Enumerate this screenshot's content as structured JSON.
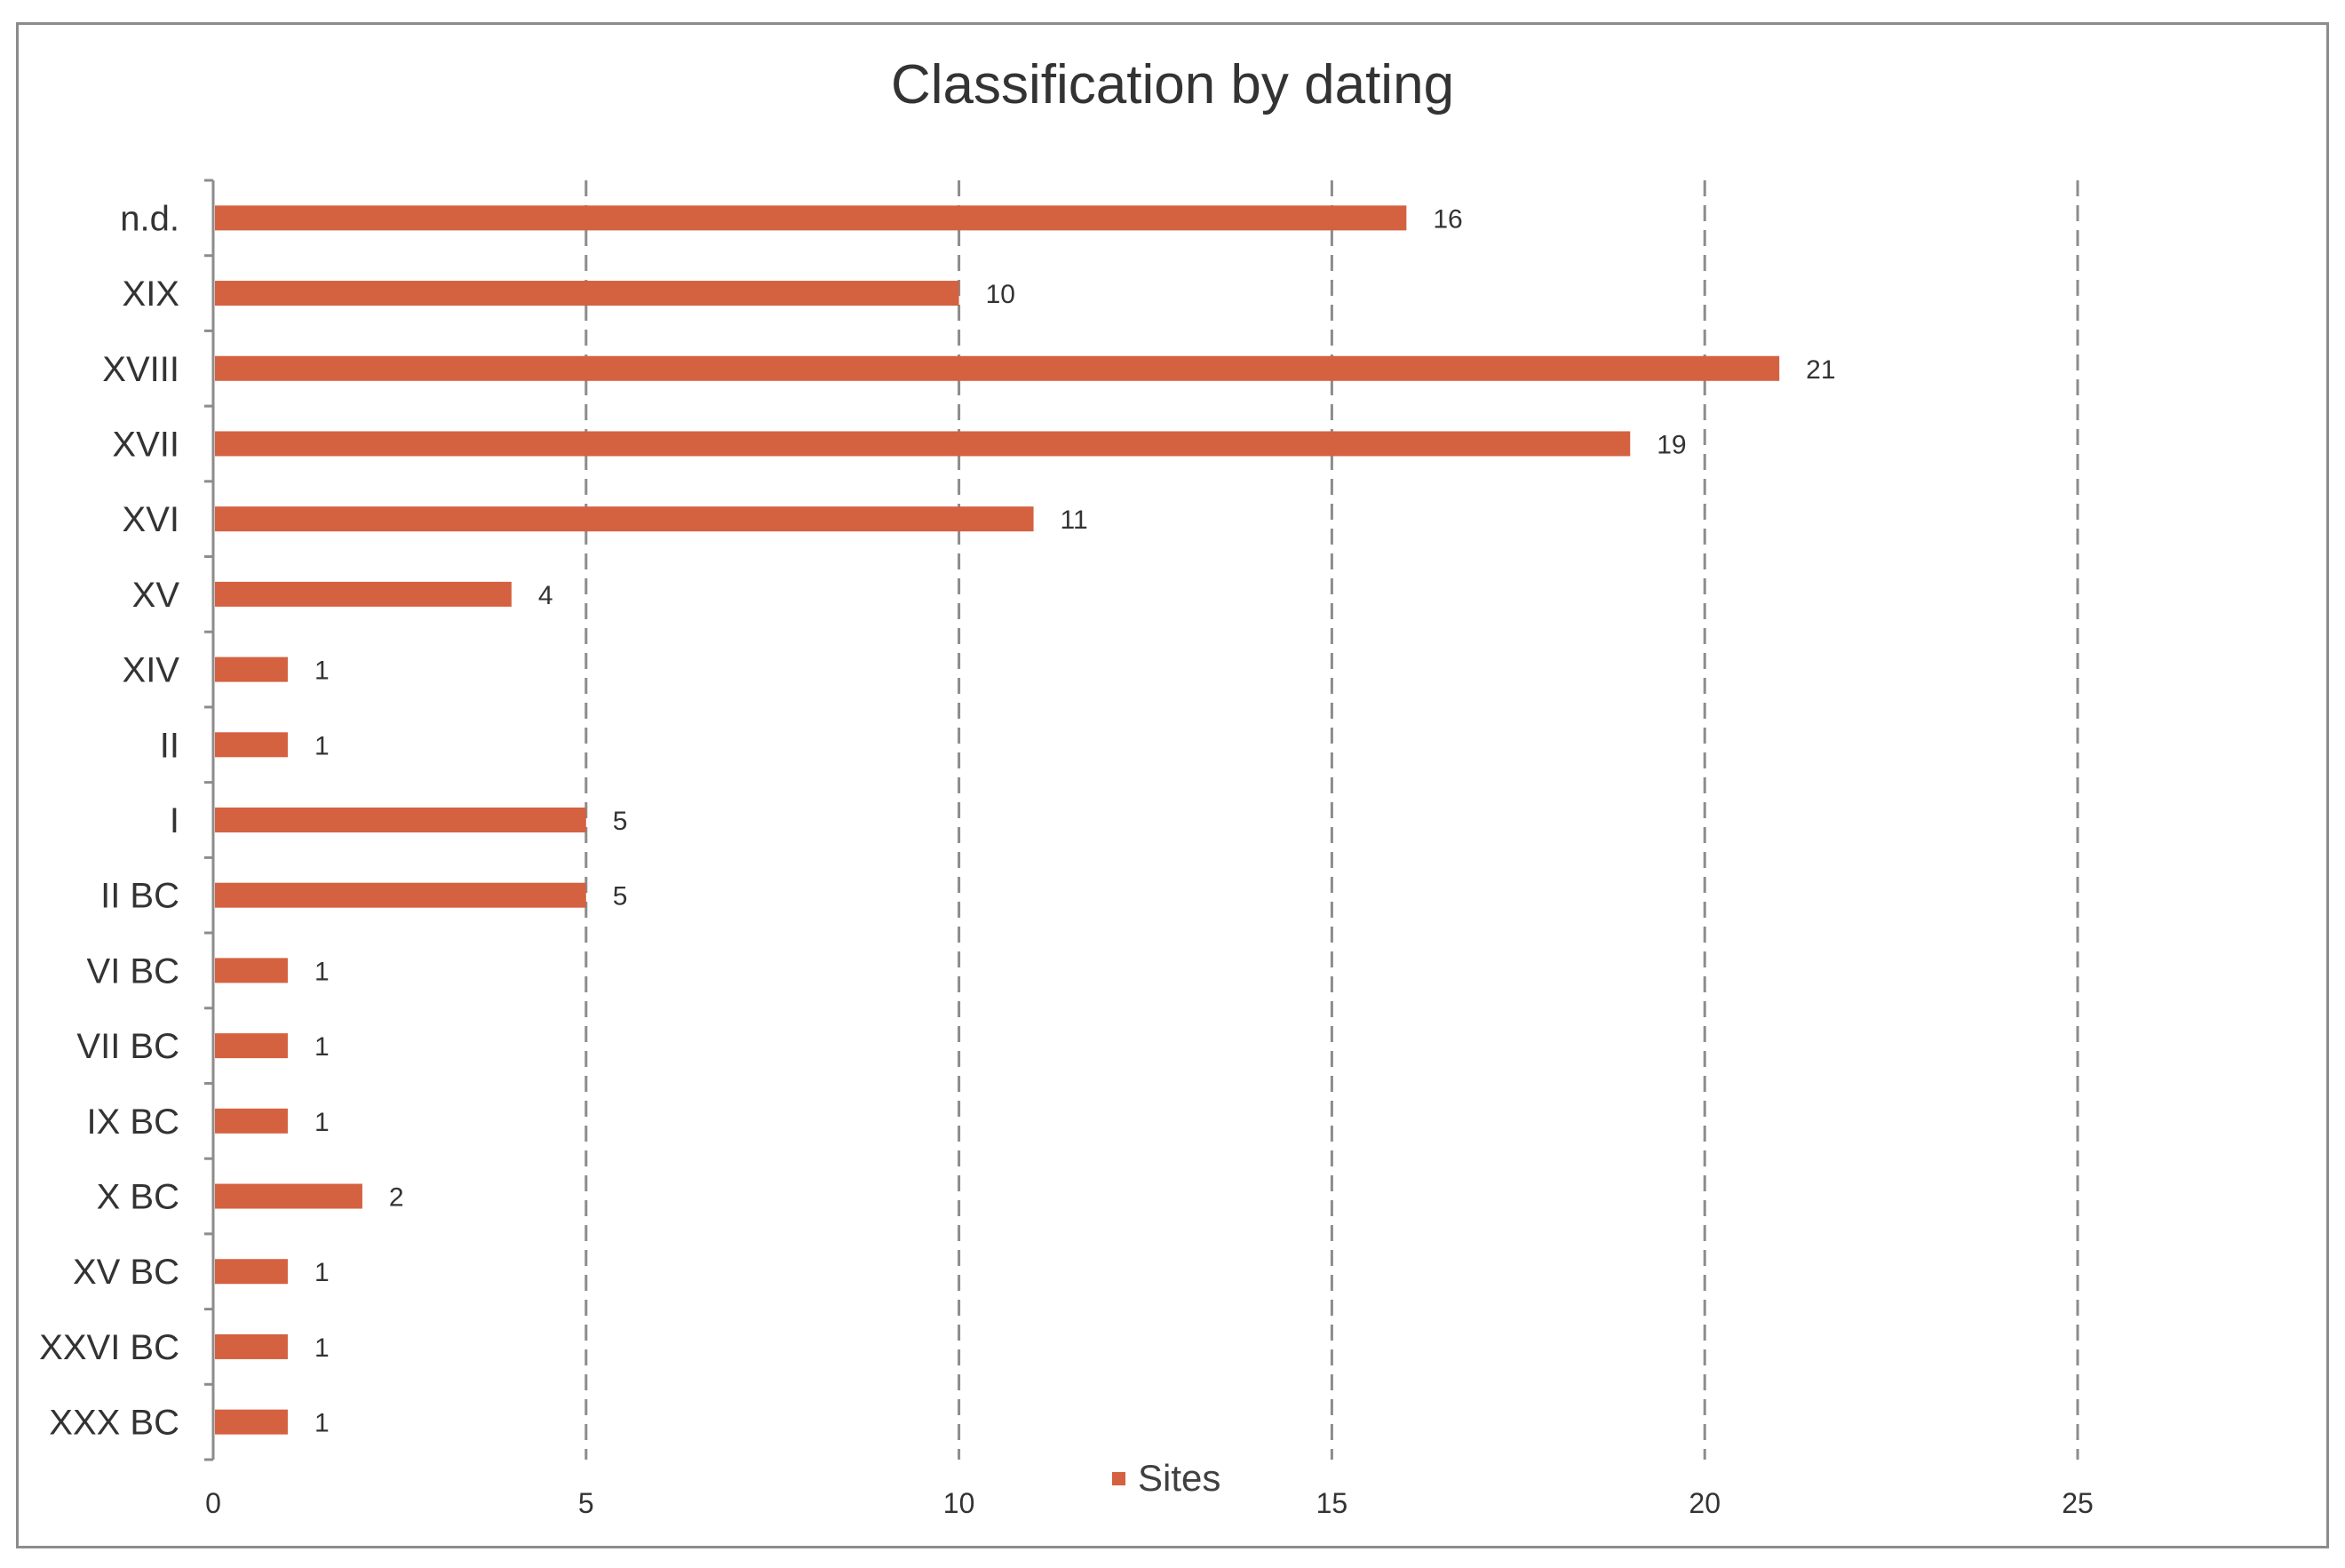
{
  "chart_data": {
    "type": "bar",
    "orientation": "horizontal",
    "title": "Classification by dating",
    "categories": [
      "n.d.",
      "XIX",
      "XVIII",
      "XVII",
      "XVI",
      "XV",
      "XIV",
      "II",
      "I",
      "II BC",
      "VI BC",
      "VII BC",
      "IX BC",
      "X BC",
      "XV BC",
      "XXVI BC",
      "XXX BC"
    ],
    "series": [
      {
        "name": "Sites",
        "values": [
          16,
          10,
          21,
          19,
          11,
          4,
          1,
          1,
          5,
          5,
          1,
          1,
          1,
          2,
          1,
          1,
          1
        ]
      }
    ],
    "xlim": [
      0,
      25
    ],
    "xticks": [
      0,
      5,
      10,
      15,
      20,
      25
    ],
    "xgrid": true,
    "grid_style": "dashed",
    "data_labels": true,
    "legend_position": "bottom",
    "colors": {
      "bar": "#d46140",
      "grid": "#8c8c8c",
      "axis": "#8c8c8c",
      "text": "#333333"
    }
  }
}
